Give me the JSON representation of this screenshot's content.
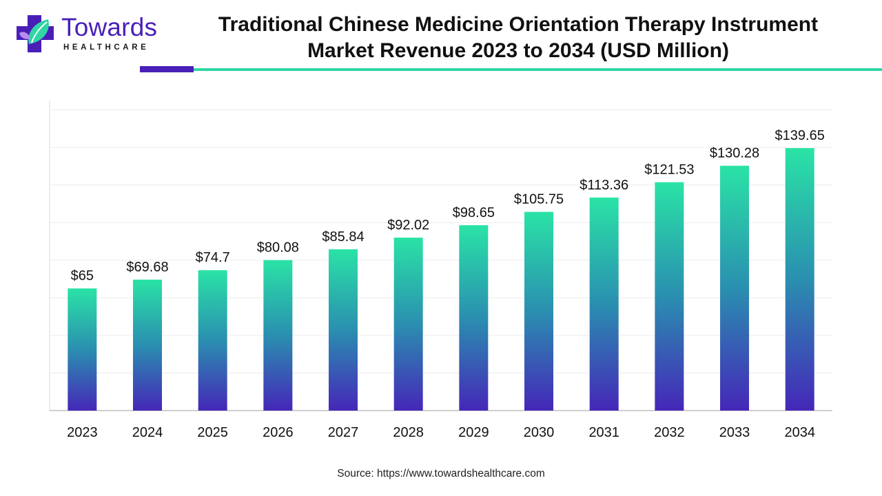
{
  "brand": {
    "name": "Towards",
    "tagline": "HEALTHCARE",
    "colors": {
      "purple": "#4a1fb8",
      "teal": "#2fd6a4",
      "light_purple": "#b98cf0"
    }
  },
  "header": {
    "title_line1": "Traditional Chinese Medicine Orientation Therapy Instrument",
    "title_line2": "Market Revenue 2023 to 2034 (USD Million)"
  },
  "footer": {
    "source": "Source: https://www.towardshealthcare.com"
  },
  "chart_data": {
    "type": "bar",
    "title": "Traditional Chinese Medicine Orientation Therapy Instrument Market Revenue 2023 to 2034 (USD Million)",
    "xlabel": "",
    "ylabel": "",
    "categories": [
      "2023",
      "2024",
      "2025",
      "2026",
      "2027",
      "2028",
      "2029",
      "2030",
      "2031",
      "2032",
      "2033",
      "2034"
    ],
    "values": [
      65,
      69.68,
      74.7,
      80.08,
      85.84,
      92.02,
      98.65,
      105.75,
      113.36,
      121.53,
      130.28,
      139.65
    ],
    "data_labels": [
      "$65",
      "$69.68",
      "$74.7",
      "$80.08",
      "$85.84",
      "$92.02",
      "$98.65",
      "$105.75",
      "$113.36",
      "$121.53",
      "$130.28",
      "$139.65"
    ],
    "ylim": [
      0,
      160
    ],
    "grid": true,
    "legend": "none",
    "bar_gradient": {
      "top": "#2ae3a6",
      "middle": "#2a8fb0",
      "bottom": "#4527b8"
    }
  }
}
